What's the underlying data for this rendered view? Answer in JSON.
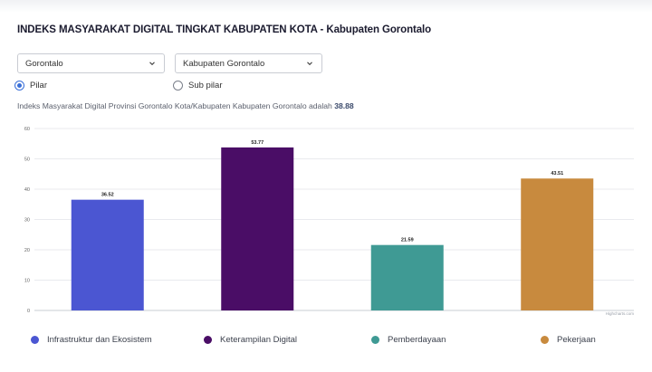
{
  "page": {
    "title": "INDEKS MASYARAKAT DIGITAL TINGKAT KABUPATEN KOTA - Kabupaten Gorontalo"
  },
  "filters": {
    "province": "Gorontalo",
    "regency": "Kabupaten Gorontalo",
    "radios": [
      {
        "label": "Pilar",
        "checked": true
      },
      {
        "label": "Sub pilar",
        "checked": false
      }
    ]
  },
  "summary": {
    "text": "Indeks Masyarakat Digital Provinsi Gorontalo Kota/Kabupaten Kabupaten Gorontalo adalah",
    "value": "38.88"
  },
  "chart_data": {
    "type": "bar",
    "categories": [
      "Infrastruktur dan Ekosistem",
      "Keterampilan Digital",
      "Pemberdayaan",
      "Pekerjaan"
    ],
    "values": [
      36.52,
      53.77,
      21.59,
      43.51
    ],
    "value_labels": [
      "36.52",
      "53.77",
      "21.59",
      "43.51"
    ],
    "colors": [
      "#4b56d2",
      "#4a0d66",
      "#3f9a94",
      "#c88a3e"
    ],
    "ylim": [
      0,
      60
    ],
    "yticks": [
      0,
      10,
      20,
      30,
      40,
      50,
      60
    ],
    "grid": true,
    "legend": "bottom",
    "credit": "Highcharts.com"
  }
}
